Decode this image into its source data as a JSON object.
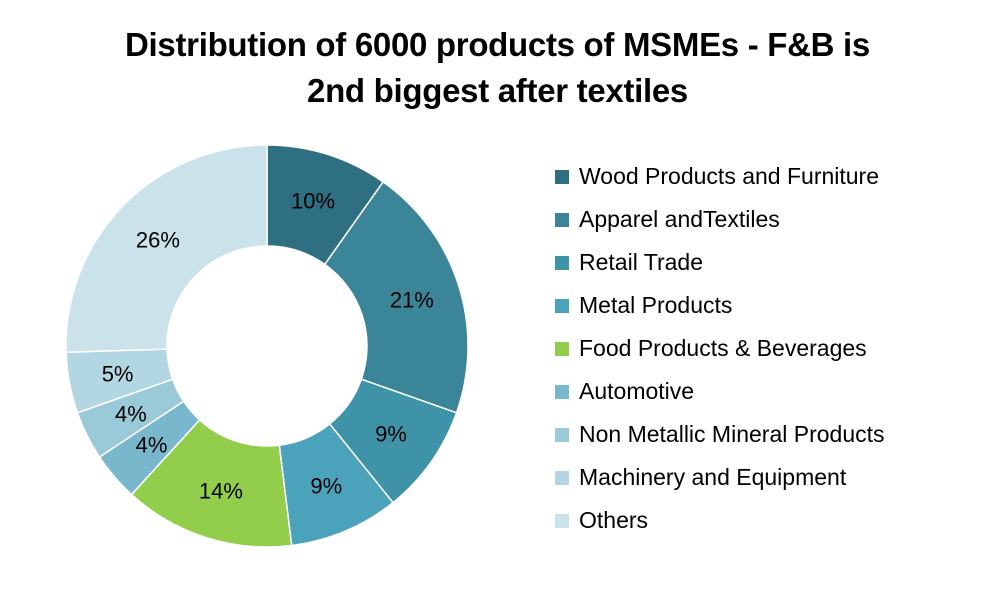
{
  "chart_data": {
    "type": "pie",
    "title_lines": [
      "Distribution of 6000 products of MSMEs - F&B is",
      "2nd biggest after textiles"
    ],
    "hole": true,
    "legend_position": "right",
    "series": [
      {
        "name": "Wood Products and Furniture",
        "value": 10,
        "label": "10%",
        "color": "#2f6f82"
      },
      {
        "name": "Apparel andTextiles",
        "value": 21,
        "label": "21%",
        "color": "#3a8598"
      },
      {
        "name": "Retail Trade",
        "value": 9,
        "label": "9%",
        "color": "#3e93a8"
      },
      {
        "name": "Metal Products",
        "value": 9,
        "label": "9%",
        "color": "#4aa3ba"
      },
      {
        "name": "Food Products & Beverages",
        "value": 14,
        "label": "14%",
        "color": "#92cd4c"
      },
      {
        "name": "Automotive",
        "value": 4,
        "label": "4%",
        "color": "#79b8cc"
      },
      {
        "name": "Non Metallic Mineral Products",
        "value": 4,
        "label": "4%",
        "color": "#9ac9d8"
      },
      {
        "name": "Machinery and Equipment",
        "value": 5,
        "label": "5%",
        "color": "#b3d7e2"
      },
      {
        "name": "Others",
        "value": 26,
        "label": "26%",
        "color": "#cae2ea"
      }
    ]
  }
}
